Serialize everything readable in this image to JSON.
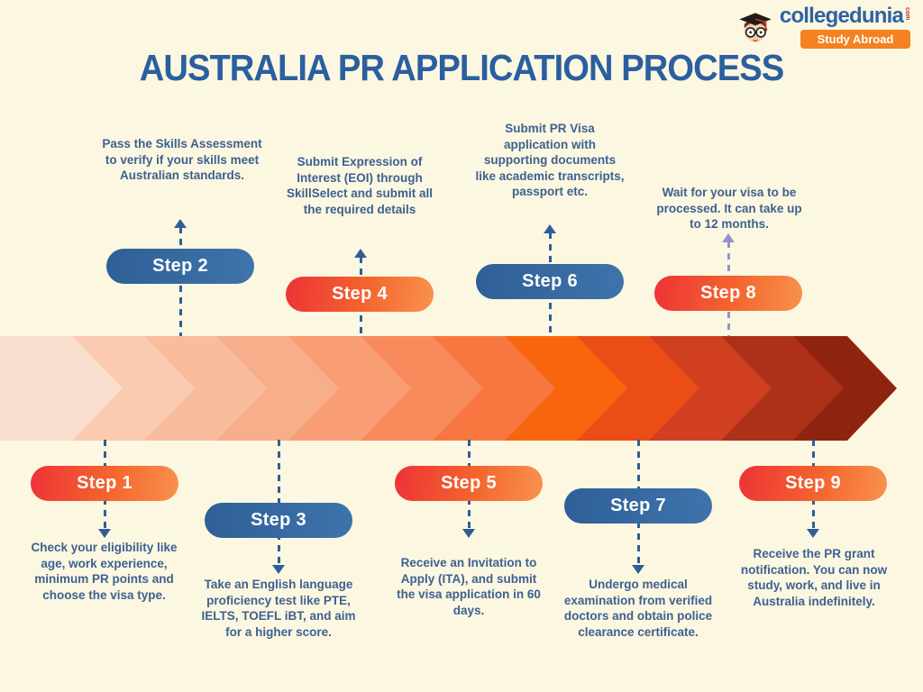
{
  "header": {
    "title": "AUSTRALIA PR APPLICATION PROCESS"
  },
  "logo": {
    "brand": "collegedunia",
    "suffix": "com",
    "badge": "Study Abroad"
  },
  "steps": [
    {
      "id": 1,
      "label": "Step 1",
      "pill_style": "orange",
      "placement": "below",
      "description": "Check your eligibility like age, work experience, minimum PR points and choose the visa type."
    },
    {
      "id": 2,
      "label": "Step 2",
      "pill_style": "blue",
      "placement": "above",
      "description": "Pass the Skills Assessment to verify if your skills meet Australian standards."
    },
    {
      "id": 3,
      "label": "Step 3",
      "pill_style": "blue",
      "placement": "below",
      "description": "Take an English language proficiency test like PTE, IELTS, TOEFL iBT, and aim for a higher score."
    },
    {
      "id": 4,
      "label": "Step 4",
      "pill_style": "orange",
      "placement": "above",
      "description": "Submit Expression of Interest (EOI) through SkillSelect and submit all the required details"
    },
    {
      "id": 5,
      "label": "Step 5",
      "pill_style": "orange",
      "placement": "below",
      "description": "Receive an Invitation to Apply (ITA), and submit the visa application in 60 days."
    },
    {
      "id": 6,
      "label": "Step 6",
      "pill_style": "blue",
      "placement": "above",
      "description": "Submit PR Visa application with supporting documents like academic transcripts, passport etc."
    },
    {
      "id": 7,
      "label": "Step 7",
      "pill_style": "blue",
      "placement": "below",
      "description": "Undergo medical examination from verified doctors and obtain police clearance certificate."
    },
    {
      "id": 8,
      "label": "Step 8",
      "pill_style": "orange",
      "placement": "above",
      "description": "Wait for your visa to be processed. It can take up to 12 months."
    },
    {
      "id": 9,
      "label": "Step 9",
      "pill_style": "orange",
      "placement": "below",
      "description": "Receive the PR grant notification. You can now study, work, and live in Australia indefinitely."
    }
  ],
  "timeline": {
    "segment_colors": [
      "#FBDFCE",
      "#FACBB0",
      "#F9BD9E",
      "#F9AE8B",
      "#F99D74",
      "#F98A5B",
      "#F87741",
      "#F7660F",
      "#EC4D17",
      "#D04020",
      "#AC3118",
      "#8E2410"
    ]
  },
  "colors": {
    "background": "#FCF7E1",
    "title_blue": "#2A5FA0",
    "pill_blue": "#35689F",
    "pill_orange_start": "#ED3237",
    "pill_orange_end": "#F9924E",
    "connector_blue": "#2F5E97",
    "connector_purple": "#988FD2",
    "description_text": "#3D6191",
    "badge_orange": "#F58220"
  }
}
